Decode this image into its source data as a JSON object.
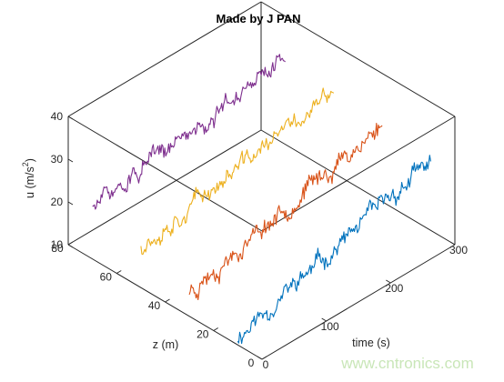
{
  "chart_data": {
    "type": "line",
    "title": "Made by J PAN",
    "xlabel": "time (s)",
    "ylabel": "z (m)",
    "zlabel": "u (m/s",
    "zlabel_sup": "2",
    "zlabel_close": ")",
    "xlim": [
      0,
      300
    ],
    "ylim": [
      0,
      80
    ],
    "zlim": [
      10,
      40
    ],
    "x_ticks": [
      {
        "value": 0,
        "label": "0"
      },
      {
        "value": 100,
        "label": "100"
      },
      {
        "value": 200,
        "label": "200"
      },
      {
        "value": 300,
        "label": "300"
      }
    ],
    "y_ticks": [
      {
        "value": 0,
        "label": "0"
      },
      {
        "value": 20,
        "label": "20"
      },
      {
        "value": 40,
        "label": "40"
      },
      {
        "value": 60,
        "label": "60"
      },
      {
        "value": 80,
        "label": "80"
      }
    ],
    "z_ticks": [
      {
        "value": 10,
        "label": "10"
      },
      {
        "value": 20,
        "label": "20"
      },
      {
        "value": 30,
        "label": "30"
      },
      {
        "value": 40,
        "label": "40"
      }
    ],
    "grid": false,
    "box": true,
    "series": [
      {
        "z": 10,
        "color": "#0072BD",
        "t_start": 0,
        "t_end": 300,
        "u_start": 12,
        "u_end": 26,
        "noise": 1.8,
        "seed": 11
      },
      {
        "z": 30,
        "color": "#D95319",
        "t_start": 0,
        "t_end": 300,
        "u_start": 16,
        "u_end": 28,
        "noise": 1.9,
        "seed": 23
      },
      {
        "z": 50,
        "color": "#EDB120",
        "t_start": 0,
        "t_end": 300,
        "u_start": 20,
        "u_end": 29,
        "noise": 1.8,
        "seed": 37
      },
      {
        "z": 70,
        "color": "#7E2F8E",
        "t_start": 0,
        "t_end": 300,
        "u_start": 22,
        "u_end": 30,
        "noise": 1.8,
        "seed": 51
      }
    ]
  },
  "watermark": "www.cntronics.com"
}
